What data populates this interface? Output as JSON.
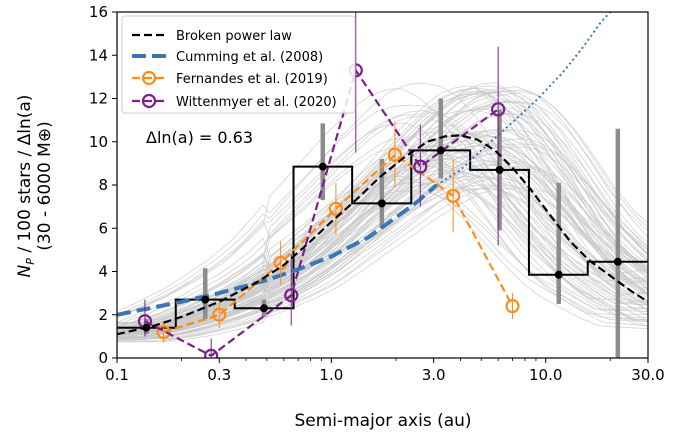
{
  "chart_data": {
    "type": "line",
    "xlabel": "Semi-major axis (au)",
    "ylabel_line1": "N",
    "ylabel_line1_sub": "P",
    "ylabel_line1_rest": " / 100 stars / Δln(a)",
    "ylabel_line2": "(30 - 6000 M⊕)",
    "x_scale": "log",
    "xlim": [
      0.1,
      30.0
    ],
    "ylim": [
      0,
      16
    ],
    "x_ticks": [
      {
        "value": 0.1,
        "label": "0.1"
      },
      {
        "value": 0.3,
        "label": "0.3"
      },
      {
        "value": 1.0,
        "label": "1.0"
      },
      {
        "value": 3.0,
        "label": "3.0"
      },
      {
        "value": 10.0,
        "label": "10.0"
      },
      {
        "value": 30.0,
        "label": "30.0"
      }
    ],
    "y_ticks": [
      0,
      2,
      4,
      6,
      8,
      10,
      12,
      14,
      16
    ],
    "annotation": "Δln(a) = 0.63",
    "legend_position": "upper-left",
    "legend": [
      {
        "label": "Broken power law",
        "style": "dashed-black"
      },
      {
        "label": "Cumming et al. (2008)",
        "style": "dashed-blue"
      },
      {
        "label": "Fernandes et al. (2019)",
        "style": "dashed-orange-circle"
      },
      {
        "label": "Wittenmyer et al. (2020)",
        "style": "dashed-purple-circle"
      }
    ],
    "colors": {
      "black": "#000000",
      "blue": "#3a78b5",
      "orange": "#ff8c1a",
      "purple": "#7b1f8c",
      "gray_err": "#8c8c8c",
      "gray_curves": "#c8c8c8"
    },
    "histogram": {
      "edges": [
        0.1,
        0.188,
        0.354,
        0.666,
        1.25,
        2.36,
        4.44,
        8.35,
        15.7,
        30.0
      ],
      "values": [
        1.4,
        2.7,
        2.3,
        8.85,
        7.15,
        9.6,
        8.7,
        3.85,
        4.45
      ],
      "points_x": [
        0.137,
        0.258,
        0.485,
        0.912,
        1.72,
        3.24,
        6.09,
        11.5,
        21.7
      ],
      "err_low": [
        1.1,
        1.8,
        1.9,
        7.3,
        6.0,
        8.3,
        5.9,
        2.5,
        0.0
      ],
      "err_high": [
        1.8,
        4.15,
        2.7,
        10.85,
        9.2,
        12.0,
        11.5,
        8.1,
        10.6
      ]
    },
    "series": [
      {
        "name": "Broken power law",
        "x": [
          0.1,
          0.15,
          0.2,
          0.3,
          0.45,
          0.6,
          0.8,
          1.0,
          1.3,
          1.7,
          2.2,
          2.8,
          3.4,
          4.0,
          4.8,
          5.8,
          7.0,
          8.5,
          10.5,
          13.0,
          16.0,
          20.0,
          25.0,
          30.0
        ],
        "y": [
          1.1,
          1.5,
          1.9,
          2.6,
          3.5,
          4.3,
          5.4,
          6.3,
          7.3,
          8.4,
          9.3,
          10.0,
          10.25,
          10.3,
          10.1,
          9.6,
          8.8,
          7.8,
          6.6,
          5.4,
          4.5,
          3.8,
          3.1,
          2.6
        ]
      },
      {
        "name": "Cumming et al. (2008)",
        "x": [
          0.1,
          0.2,
          0.3,
          0.5,
          0.7,
          1.0,
          1.5,
          2.0,
          2.5,
          3.1
        ],
        "y": [
          2.0,
          2.6,
          3.0,
          3.6,
          4.1,
          4.7,
          5.6,
          6.5,
          7.2,
          8.0
        ]
      },
      {
        "name": "Fernandes et al. (2019)",
        "x": [
          0.165,
          0.3,
          0.58,
          1.05,
          1.98,
          3.7,
          7.0
        ],
        "y": [
          1.2,
          2.0,
          4.4,
          6.9,
          9.4,
          7.5,
          2.4
        ],
        "err": [
          0.5,
          0.6,
          1.0,
          1.2,
          1.5,
          1.7,
          0.6
        ]
      },
      {
        "name": "Wittenmyer et al. (2020)",
        "x": [
          0.135,
          0.275,
          0.65,
          1.3,
          2.6,
          6.0
        ],
        "y": [
          1.7,
          0.1,
          2.9,
          13.3,
          8.85,
          11.5
        ],
        "err_low": [
          1.0,
          0.1,
          1.5,
          9.5,
          7.0,
          5.2
        ],
        "err_high": [
          2.7,
          0.9,
          4.8,
          16.0,
          10.8,
          14.4
        ]
      },
      {
        "name": "Cumming extrapolation",
        "x": [
          3.1,
          4.0,
          5.0,
          7.0,
          9.0,
          12.0,
          15.0,
          18.0,
          20.0
        ],
        "y": [
          8.0,
          8.7,
          9.6,
          10.9,
          11.9,
          13.2,
          14.4,
          15.5,
          16.0
        ]
      }
    ]
  }
}
